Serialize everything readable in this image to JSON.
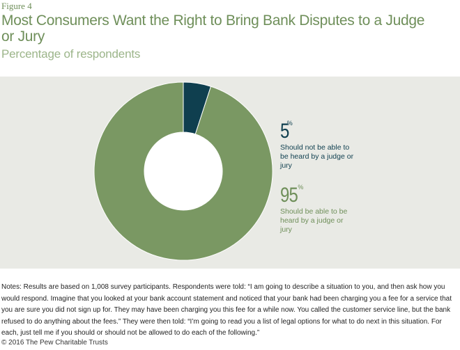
{
  "figure_label": "Figure 4",
  "title": "Most Consumers Want the Right to Bring Bank Disputes to a Judge or Jury",
  "subtitle": "Percentage of respondents",
  "chart_data": {
    "type": "pie",
    "donut": true,
    "slices": [
      {
        "label": "Should not be able to be heard by a judge or jury",
        "value": 5,
        "display": "5",
        "unit": "%",
        "color": "#0f3f4f",
        "text_color": "#0f3f4f"
      },
      {
        "label": "Should be able to be heard by a judge or jury",
        "value": 95,
        "display": "95",
        "unit": "%",
        "color": "#7a9863",
        "text_color": "#6f8f5a"
      }
    ]
  },
  "notes": "Notes: Results are based on 1,008 survey participants. Respondents were told: “I am going to describe a situation to you, and then ask how you would respond. Imagine that you looked at your bank account statement and noticed that your bank had been charging you a fee for a service that you are sure you did not sign up for. They may have been charging you this fee for a while now. You called the customer service line, but the bank refused to do anything about the fees.” They were then told: “I’m going to read you a list of legal options for what to do next in this situation. For each, just tell me if you should or should not be allowed to do each of the following.”",
  "copyright": "© 2016 The Pew Charitable Trusts"
}
